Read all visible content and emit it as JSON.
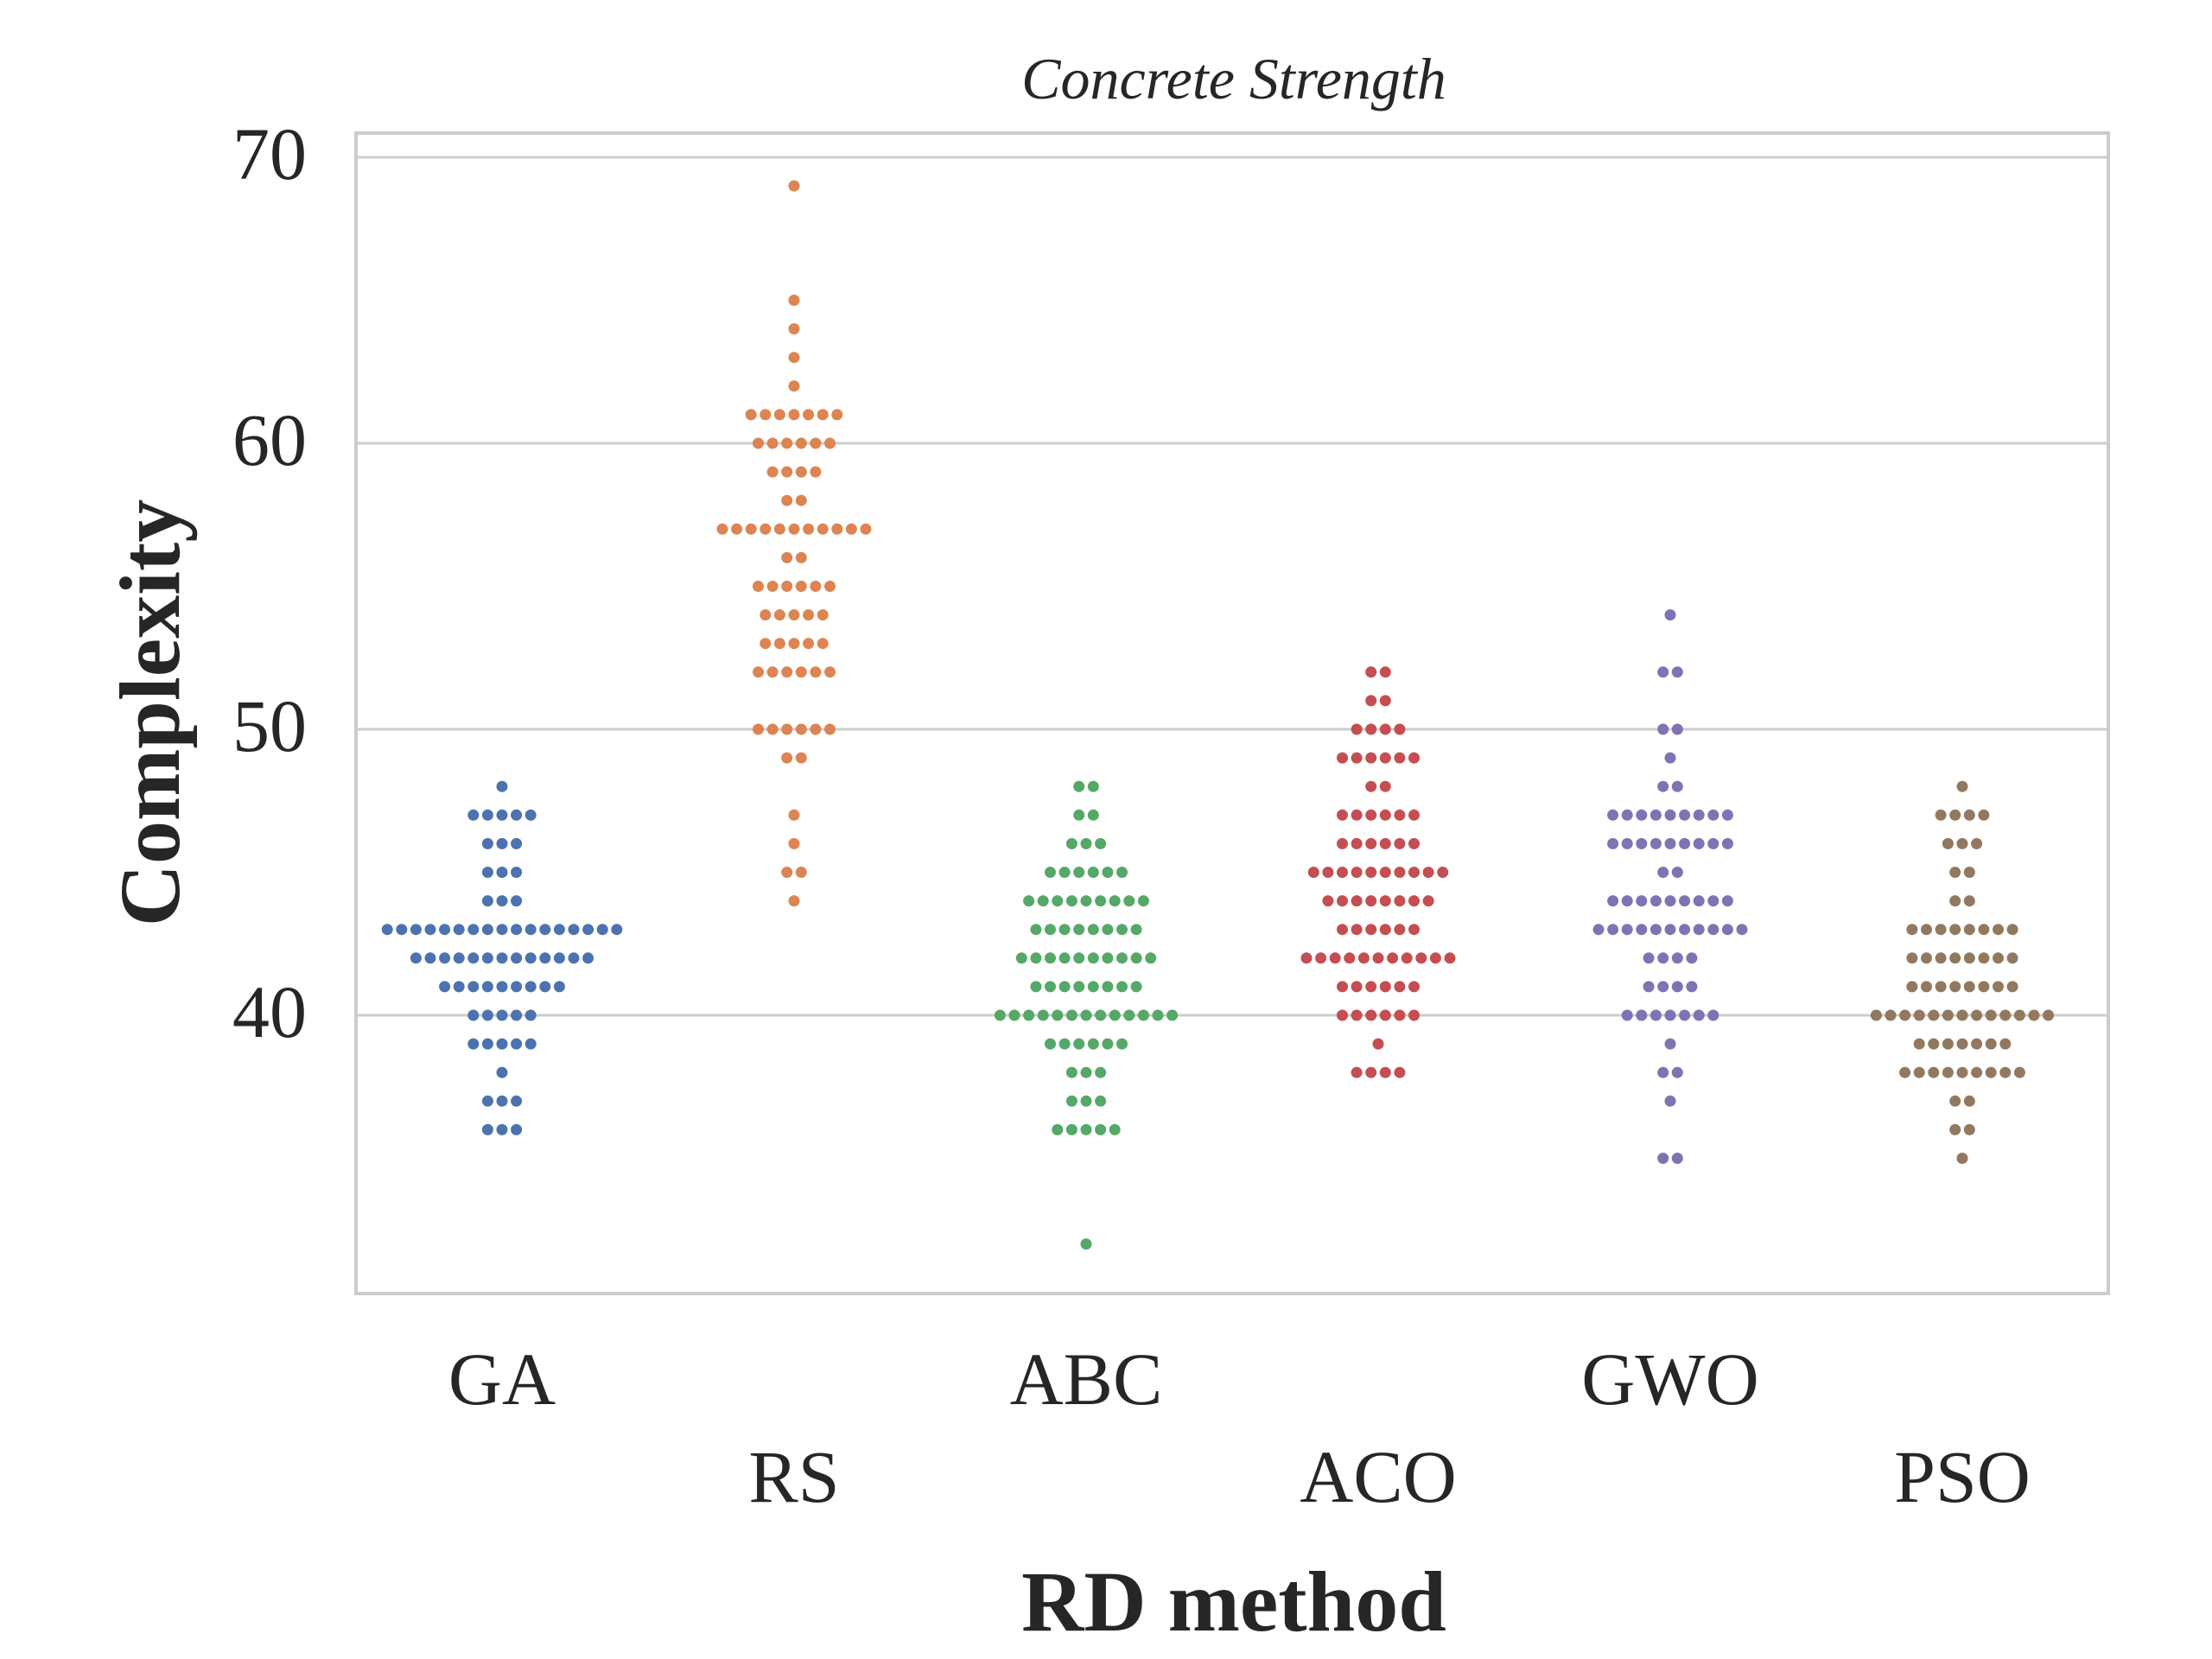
{
  "chart_data": {
    "type": "scatter",
    "subtype": "swarm",
    "title": "Concrete Strength",
    "xlabel": "RD method",
    "ylabel": "Complexity",
    "ylim": [
      30,
      71
    ],
    "yticks": [
      40,
      50,
      60,
      70
    ],
    "grid": "horizontal",
    "categories": [
      "GA",
      "RS",
      "ABC",
      "ACO",
      "GWO",
      "PSO"
    ],
    "series": [
      {
        "color": "#4c72b0",
        "values": {
          "36": 3,
          "37": 3,
          "38": 1,
          "39": 5,
          "40": 5,
          "41": 9,
          "42": 13,
          "43": 17,
          "44": 3,
          "45": 3,
          "46": 3,
          "47": 5,
          "48": 1
        }
      },
      {
        "color": "#dd8452",
        "values": {
          "44": 1,
          "45": 2,
          "46": 1,
          "47": 1,
          "49": 2,
          "50": 6,
          "52": 6,
          "53": 5,
          "54": 5,
          "55": 6,
          "56": 2,
          "57": 11,
          "58": 2,
          "59": 4,
          "60": 6,
          "61": 7,
          "62": 1,
          "63": 1,
          "64": 1,
          "65": 1,
          "69": 1
        }
      },
      {
        "color": "#55a868",
        "values": {
          "32": 1,
          "36": 5,
          "37": 3,
          "38": 3,
          "39": 6,
          "40": 13,
          "41": 8,
          "42": 10,
          "43": 8,
          "44": 9,
          "45": 6,
          "46": 3,
          "47": 2,
          "48": 2
        }
      },
      {
        "color": "#c44e52",
        "values": {
          "38": 4,
          "39": 1,
          "40": 6,
          "41": 6,
          "42": 11,
          "43": 6,
          "44": 8,
          "45": 10,
          "46": 6,
          "47": 6,
          "48": 2,
          "49": 6,
          "50": 4,
          "51": 2,
          "52": 2
        }
      },
      {
        "color": "#8172b3",
        "values": {
          "35": 2,
          "37": 1,
          "38": 2,
          "39": 1,
          "40": 7,
          "41": 4,
          "42": 4,
          "43": 11,
          "44": 9,
          "45": 2,
          "46": 9,
          "47": 9,
          "48": 2,
          "49": 1,
          "50": 2,
          "52": 2,
          "54": 1
        }
      },
      {
        "color": "#937860",
        "values": {
          "35": 1,
          "36": 2,
          "37": 2,
          "38": 9,
          "39": 7,
          "40": 13,
          "41": 8,
          "42": 8,
          "43": 8,
          "44": 2,
          "45": 2,
          "46": 3,
          "47": 4,
          "48": 1
        }
      }
    ]
  }
}
